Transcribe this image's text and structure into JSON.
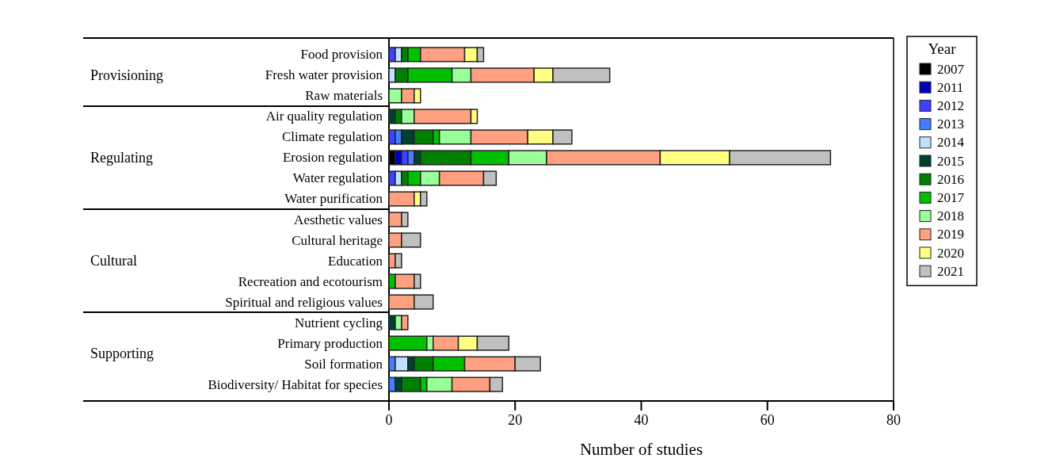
{
  "chart_data": {
    "type": "bar",
    "orientation": "horizontal",
    "stacked": true,
    "xlabel": "Number of studies",
    "legend_title": "Year",
    "legend": "top right",
    "categories": [
      "Food provision",
      "Fresh water provision",
      "Raw materials",
      "Air quality regulation",
      "Climate regulation",
      "Erosion regulation",
      "Water regulation",
      "Water purification",
      "Aesthetic values",
      "Cultural heritage",
      "Education",
      "Recreation and ecotourism",
      "Spiritual and religious values",
      "Nutrient cycling",
      "Primary production",
      "Soil formation",
      "Biodiversity/ Habitat for species"
    ],
    "annotations": [
      "Provisioning",
      "Regulating",
      "Cultural",
      "Supporting"
    ],
    "xlim": [
      0,
      80
    ],
    "xticks": [
      0,
      20,
      40,
      60,
      80
    ],
    "series": [
      {
        "name": "2007",
        "color": "#000000",
        "values": [
          0,
          0,
          0,
          0,
          0,
          1,
          0,
          0,
          0,
          0,
          0,
          0,
          0,
          0,
          0,
          0,
          0
        ]
      },
      {
        "name": "2011",
        "color": "#0000c0",
        "values": [
          0,
          0,
          0,
          0,
          0,
          1,
          0,
          0,
          0,
          0,
          0,
          0,
          0,
          0,
          0,
          0,
          0
        ]
      },
      {
        "name": "2012",
        "color": "#4040ff",
        "values": [
          1,
          0,
          0,
          0,
          1,
          1,
          1,
          0,
          0,
          0,
          0,
          0,
          0,
          0,
          0,
          0,
          0
        ]
      },
      {
        "name": "2013",
        "color": "#4080ff",
        "values": [
          0,
          0,
          0,
          0,
          1,
          1,
          0,
          0,
          0,
          0,
          0,
          0,
          0,
          0,
          0,
          1,
          1
        ]
      },
      {
        "name": "2014",
        "color": "#c0e0ff",
        "values": [
          1,
          1,
          0,
          0,
          0,
          0,
          1,
          0,
          0,
          0,
          0,
          0,
          0,
          0,
          0,
          2,
          0
        ]
      },
      {
        "name": "2015",
        "color": "#004030",
        "values": [
          0,
          0,
          0,
          1,
          2,
          1,
          0,
          0,
          0,
          0,
          0,
          0,
          0,
          1,
          0,
          1,
          1
        ]
      },
      {
        "name": "2016",
        "color": "#008000",
        "values": [
          1,
          2,
          0,
          1,
          3,
          8,
          1,
          0,
          0,
          0,
          0,
          0,
          0,
          0,
          0,
          3,
          3
        ]
      },
      {
        "name": "2017",
        "color": "#00c000",
        "values": [
          2,
          7,
          0,
          0,
          1,
          6,
          2,
          0,
          0,
          0,
          0,
          1,
          0,
          0,
          6,
          5,
          1
        ]
      },
      {
        "name": "2018",
        "color": "#99ff99",
        "values": [
          0,
          3,
          2,
          2,
          5,
          6,
          3,
          0,
          0,
          0,
          0,
          0,
          0,
          1,
          1,
          0,
          4
        ]
      },
      {
        "name": "2019",
        "color": "#ffa080",
        "values": [
          7,
          10,
          2,
          9,
          9,
          18,
          7,
          4,
          2,
          2,
          1,
          3,
          4,
          1,
          4,
          8,
          6
        ]
      },
      {
        "name": "2020",
        "color": "#ffff80",
        "values": [
          2,
          3,
          1,
          1,
          4,
          11,
          0,
          1,
          0,
          0,
          0,
          0,
          0,
          0,
          3,
          0,
          0
        ]
      },
      {
        "name": "2021",
        "color": "#c0c0c0",
        "values": [
          1,
          9,
          0,
          0,
          3,
          16,
          2,
          1,
          1,
          3,
          1,
          1,
          3,
          0,
          5,
          4,
          2
        ]
      }
    ]
  }
}
